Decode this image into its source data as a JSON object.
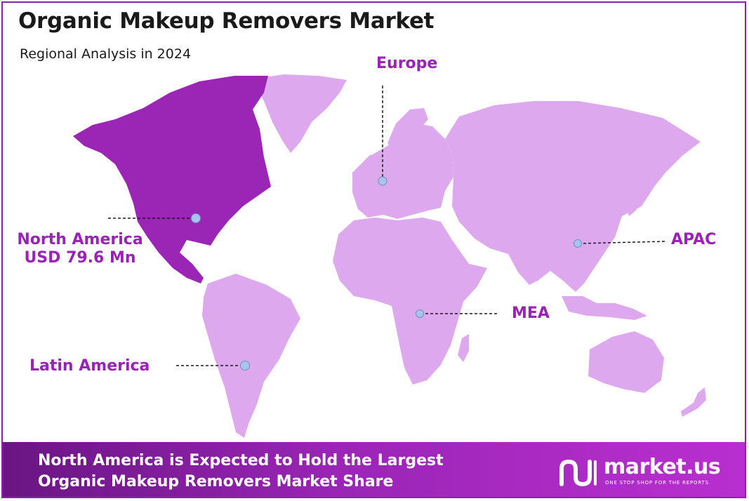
{
  "header": {
    "title": "Organic Makeup Removers Market",
    "subtitle": "Regional Analysis in 2024"
  },
  "regions": {
    "north_america": {
      "name": "North America",
      "value": "USD 79.6 Mn",
      "highlighted": true
    },
    "europe": {
      "name": "Europe"
    },
    "apac": {
      "name": "APAC"
    },
    "mea": {
      "name": "MEA"
    },
    "latin_america": {
      "name": "Latin America"
    }
  },
  "footer": {
    "line1": "North America is Expected to Hold the Largest",
    "line2": "Organic Makeup Removers Market Share"
  },
  "logo": {
    "name": "market.us",
    "tagline": "ONE STOP SHOP FOR THE REPORTS"
  },
  "colors": {
    "highlight": "#9b25b5",
    "land": "#dea8ef",
    "label": "#9a22b8",
    "marker": "#a9c4ec",
    "footer": "#9a25b6"
  }
}
